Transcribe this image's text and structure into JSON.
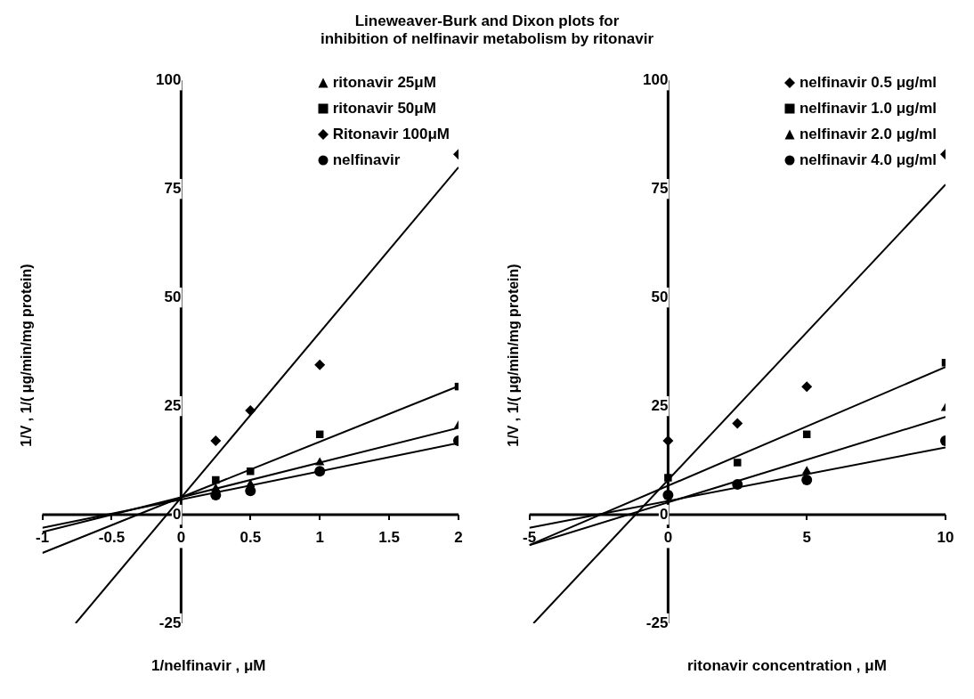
{
  "chart_data": [
    {
      "type": "scatter",
      "title": "Lineweaver-Burk  and Dixon plots for\ninhibition of   nelfinavir   metabolism by  ritonavir",
      "xlabel": "1/nelfinavir , μM",
      "ylabel": "1/V , 1/(  μg/min/mg protein)",
      "xlim": [
        -1,
        2
      ],
      "xticks": [
        -1,
        -0.5,
        0,
        0.5,
        1,
        1.5,
        2
      ],
      "ylim": [
        -25,
        100
      ],
      "yticks": [
        -25,
        0,
        25,
        50,
        75,
        100
      ],
      "grid": false,
      "legend": "top right",
      "series": [
        {
          "name": "ritonavir 25μM",
          "color": "#000000",
          "marker": "triangle",
          "x": [
            0.25,
            0.5,
            1,
            2
          ],
          "values": [
            6,
            7,
            12,
            20.5
          ]
        },
        {
          "name": "ritonavir 50μM",
          "color": "#000000",
          "marker": "square",
          "x": [
            0.25,
            0.5,
            1,
            2
          ],
          "values": [
            8,
            10,
            18.5,
            29.5
          ]
        },
        {
          "name": "Ritonavir 100μM",
          "color": "#000000",
          "marker": "diamond",
          "x": [
            0.25,
            0.5,
            1,
            2
          ],
          "values": [
            17,
            24,
            34.5,
            83
          ]
        },
        {
          "name": "nelfinavir",
          "color": "#000000",
          "marker": "circle",
          "x": [
            0.25,
            0.5,
            1,
            2
          ],
          "values": [
            4.5,
            5.5,
            10,
            17
          ]
        },
        {
          "type": "line",
          "color": "#000000",
          "x": [
            -1,
            2
          ],
          "values": [
            -4,
            20
          ]
        },
        {
          "type": "line",
          "color": "#000000",
          "x": [
            -1,
            2
          ],
          "values": [
            -8.8,
            29.6
          ]
        },
        {
          "type": "line",
          "color": "#000000",
          "x": [
            -0.76,
            2
          ],
          "values": [
            -25,
            80
          ]
        },
        {
          "type": "line",
          "color": "#000000",
          "x": [
            -1,
            2
          ],
          "values": [
            -3,
            16.5
          ]
        }
      ]
    },
    {
      "type": "scatter",
      "xlabel": "ritonavir concentration , μM",
      "ylabel": "1/V , 1/(  μg/min/mg protein)",
      "xlim": [
        -5,
        10
      ],
      "xticks": [
        -5,
        0,
        5,
        10
      ],
      "ylim": [
        -25,
        100
      ],
      "yticks": [
        -25,
        0,
        25,
        50,
        75,
        100
      ],
      "grid": false,
      "legend": "top right",
      "series": [
        {
          "name": "nelfinavir 0.5 μg/ml",
          "color": "#000000",
          "marker": "diamond",
          "x": [
            0,
            2.5,
            5,
            10
          ],
          "values": [
            17,
            21,
            29.5,
            83
          ]
        },
        {
          "name": "nelfinavir 1.0 μg/ml",
          "color": "#000000",
          "marker": "square",
          "x": [
            0,
            2.5,
            5,
            10
          ],
          "values": [
            8.5,
            12,
            18.5,
            35
          ]
        },
        {
          "name": "nelfinavir 2.0 μg/ml",
          "color": "#000000",
          "marker": "triangle",
          "x": [
            5,
            10
          ],
          "values": [
            10,
            24.5
          ]
        },
        {
          "name": "nelfinavir 4.0 μg/ml",
          "color": "#000000",
          "marker": "circle",
          "x": [
            0,
            2.5,
            5,
            10
          ],
          "values": [
            4.5,
            7,
            8,
            17
          ]
        },
        {
          "type": "line",
          "color": "#000000",
          "x": [
            -4.85,
            10
          ],
          "values": [
            -25,
            76
          ]
        },
        {
          "type": "line",
          "color": "#000000",
          "x": [
            -5,
            10
          ],
          "values": [
            -7,
            34
          ]
        },
        {
          "type": "line",
          "color": "#000000",
          "x": [
            -5,
            10
          ],
          "values": [
            -7,
            22.5
          ]
        },
        {
          "type": "line",
          "color": "#000000",
          "x": [
            -5,
            10
          ],
          "values": [
            -3,
            15.5
          ]
        }
      ]
    }
  ]
}
